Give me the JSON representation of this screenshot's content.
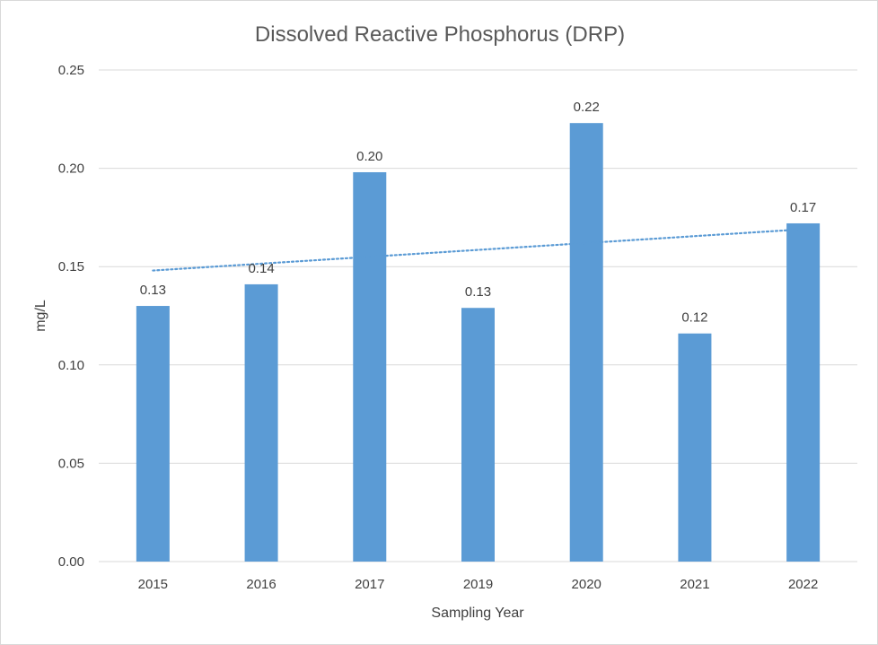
{
  "chart_data": {
    "type": "bar",
    "title": "Dissolved Reactive Phosphorus (DRP)",
    "xlabel": "Sampling Year",
    "ylabel": "mg/L",
    "categories": [
      "2015",
      "2016",
      "2017",
      "2019",
      "2020",
      "2021",
      "2022"
    ],
    "values": [
      0.13,
      0.141,
      0.198,
      0.129,
      0.223,
      0.116,
      0.172
    ],
    "data_labels": [
      "0.13",
      "0.14",
      "0.20",
      "0.13",
      "0.22",
      "0.12",
      "0.17"
    ],
    "ylim": [
      0,
      0.25
    ],
    "yticks": [
      "0.00",
      "0.05",
      "0.10",
      "0.15",
      "0.20",
      "0.25"
    ],
    "grid": true,
    "trendline": {
      "type": "linear",
      "style": "dotted",
      "start": 0.148,
      "end": 0.169
    },
    "colors": {
      "bar": "#5b9bd5",
      "trendline": "#5b9bd5",
      "grid": "#d9d9d9",
      "text": "#404040"
    }
  }
}
